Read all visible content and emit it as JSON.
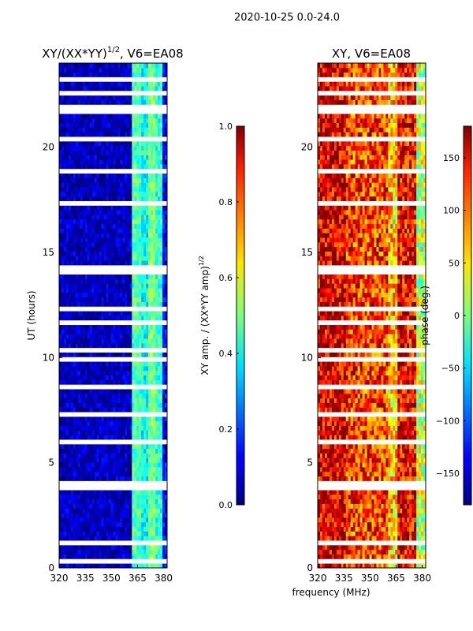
{
  "figure": {
    "suptitle": "2020-10-25 0.0-24.0",
    "xlabel_shared": "frequency (MHz)"
  },
  "chart_data": [
    {
      "type": "heatmap",
      "title_main": "XY/(XX*YY)",
      "title_sup": "1/2",
      "title_tail": ", V6=EA08",
      "xlabel": "",
      "ylabel": "UT (hours)",
      "xlim": [
        320,
        382
      ],
      "ylim": [
        0,
        24
      ],
      "xticks": [
        320,
        335,
        350,
        365,
        380
      ],
      "yticks": [
        0,
        5,
        10,
        15,
        20
      ],
      "colormap": "jet",
      "clim": [
        0.0,
        1.0
      ],
      "colorbar": {
        "label_main": "XY amp. / (XX*YY amp)",
        "label_sup": "1/2",
        "ticks": [
          "0.0",
          "0.2",
          "0.4",
          "0.6",
          "0.8",
          "1.0"
        ],
        "tick_values": [
          0.0,
          0.2,
          0.4,
          0.6,
          0.8,
          1.0
        ]
      },
      "bands": [
        {
          "f0": 320,
          "f1": 362,
          "level": 0.06
        },
        {
          "f0": 362,
          "f1": 367,
          "level": 0.45
        },
        {
          "f0": 367,
          "f1": 371,
          "level": 0.38
        },
        {
          "f0": 371,
          "f1": 375,
          "level": 0.5
        },
        {
          "f0": 375,
          "f1": 379,
          "level": 0.42
        },
        {
          "f0": 379,
          "f1": 382,
          "level": 0.12
        }
      ],
      "gaps_ut": [
        0.3,
        1.2,
        2.4,
        3.8,
        4.1,
        6.0,
        7.3,
        8.6,
        9.9,
        10.3,
        11.6,
        12.4,
        14.1,
        14.3,
        15.5,
        17.4,
        18.8,
        20.3,
        21.8,
        22.0,
        22.6,
        23.3
      ]
    },
    {
      "type": "heatmap",
      "title": "XY, V6=EA08",
      "xlabel": "frequency (MHz)",
      "ylabel": "",
      "xlim": [
        320,
        382
      ],
      "ylim": [
        0,
        24
      ],
      "xticks": [
        320,
        335,
        350,
        365,
        380
      ],
      "yticks": [
        0,
        5,
        10,
        15,
        20
      ],
      "colormap": "jet",
      "clim": [
        -180,
        180
      ],
      "colorbar": {
        "label": "phase (deg.)",
        "ticks": [
          "−150",
          "−100",
          "−50",
          "0",
          "50",
          "100",
          "150"
        ],
        "tick_values": [
          -150,
          -100,
          -50,
          0,
          50,
          100,
          150
        ]
      },
      "bands": [
        {
          "f0": 320,
          "f1": 336,
          "level": 150
        },
        {
          "f0": 336,
          "f1": 360,
          "level": 115
        },
        {
          "f0": 360,
          "f1": 366,
          "level": 60
        },
        {
          "f0": 366,
          "f1": 376,
          "level": 140
        },
        {
          "f0": 376,
          "f1": 382,
          "level": 20
        }
      ],
      "gaps_ut": [
        0.3,
        1.2,
        2.4,
        3.8,
        4.1,
        6.0,
        7.3,
        8.6,
        9.9,
        10.3,
        11.6,
        12.4,
        14.1,
        14.3,
        15.5,
        17.4,
        18.8,
        20.3,
        21.8,
        22.0,
        22.6,
        23.3
      ]
    }
  ]
}
